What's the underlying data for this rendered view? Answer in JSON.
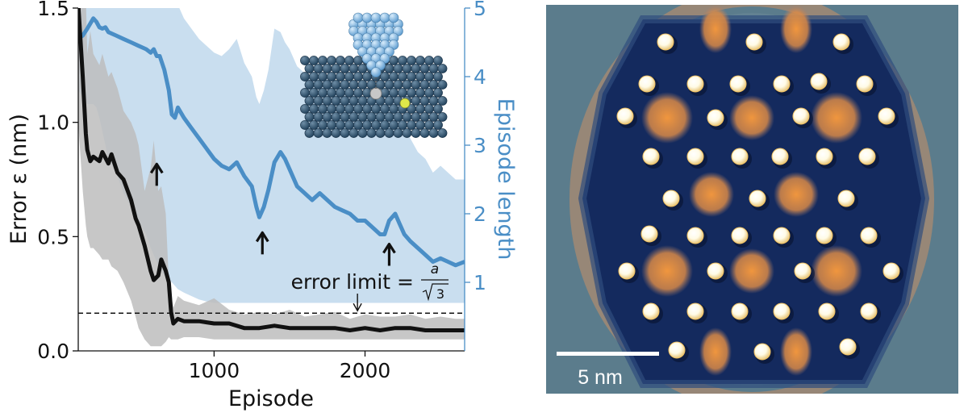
{
  "chart_data": {
    "type": "line",
    "x_axis": {
      "label": "Episode",
      "range": [
        100,
        2660
      ],
      "ticks": [
        1000,
        2000
      ],
      "tick_labels": [
        "1000",
        "2000"
      ]
    },
    "y_left": {
      "label": "Error ε (nm)",
      "range": [
        0.0,
        1.5
      ],
      "ticks": [
        0.0,
        0.5,
        1.0,
        1.5
      ],
      "tick_labels": [
        "0.0",
        "0.5",
        "1.0",
        "1.5"
      ]
    },
    "y_right": {
      "label": "Episode length",
      "range": [
        0,
        5
      ],
      "ticks": [
        1,
        2,
        3,
        4,
        5
      ],
      "tick_labels": [
        "1",
        "2",
        "3",
        "4",
        "5"
      ],
      "color": "#4a8ec6"
    },
    "series": [
      {
        "axis": "left",
        "color": "#111111",
        "band_color": "#bdbdbd",
        "x": [
          100,
          130,
          150,
          160,
          180,
          200,
          240,
          260,
          300,
          320,
          360,
          400,
          450,
          480,
          500,
          540,
          580,
          600,
          630,
          650,
          680,
          700,
          715,
          730,
          760,
          800,
          900,
          1000,
          1100,
          1200,
          1300,
          1400,
          1500,
          1600,
          1700,
          1800,
          1900,
          2000,
          2100,
          2200,
          2300,
          2400,
          2500,
          2600,
          2660
        ],
        "y": [
          1.52,
          1.2,
          0.95,
          0.88,
          0.83,
          0.85,
          0.83,
          0.87,
          0.82,
          0.86,
          0.78,
          0.75,
          0.66,
          0.58,
          0.55,
          0.46,
          0.35,
          0.31,
          0.33,
          0.4,
          0.35,
          0.3,
          0.17,
          0.12,
          0.14,
          0.13,
          0.13,
          0.12,
          0.12,
          0.1,
          0.1,
          0.11,
          0.1,
          0.1,
          0.1,
          0.1,
          0.09,
          0.1,
          0.09,
          0.1,
          0.1,
          0.09,
          0.09,
          0.09,
          0.09
        ],
        "upper": [
          1.6,
          1.6,
          1.55,
          1.3,
          1.4,
          1.3,
          1.25,
          1.3,
          1.2,
          1.22,
          1.15,
          1.05,
          1.0,
          0.95,
          0.9,
          0.7,
          0.8,
          0.92,
          0.7,
          0.72,
          0.6,
          0.3,
          0.24,
          0.19,
          0.24,
          0.22,
          0.2,
          0.23,
          0.18,
          0.16,
          0.17,
          0.16,
          0.18,
          0.15,
          0.16,
          0.17,
          0.14,
          0.16,
          0.15,
          0.15,
          0.16,
          0.14,
          0.15,
          0.14,
          0.14
        ],
        "lower": [
          1.0,
          0.7,
          0.55,
          0.5,
          0.45,
          0.45,
          0.42,
          0.4,
          0.4,
          0.37,
          0.35,
          0.3,
          0.22,
          0.15,
          0.1,
          0.05,
          0.02,
          0.02,
          0.02,
          0.02,
          0.04,
          0.06,
          0.05,
          0.05,
          0.05,
          0.06,
          0.06,
          0.05,
          0.05,
          0.05,
          0.05,
          0.05,
          0.05,
          0.05,
          0.05,
          0.05,
          0.05,
          0.05,
          0.05,
          0.05,
          0.05,
          0.05,
          0.05,
          0.05,
          0.05
        ]
      },
      {
        "axis": "right",
        "color": "#4a8ec6",
        "band_color": "#c6dcee",
        "x": [
          100,
          130,
          160,
          200,
          220,
          240,
          260,
          280,
          300,
          350,
          400,
          450,
          500,
          550,
          580,
          600,
          620,
          640,
          670,
          700,
          720,
          740,
          760,
          800,
          850,
          900,
          950,
          1000,
          1050,
          1100,
          1150,
          1200,
          1250,
          1280,
          1300,
          1330,
          1360,
          1400,
          1440,
          1470,
          1500,
          1550,
          1600,
          1650,
          1700,
          1750,
          1800,
          1850,
          1900,
          1950,
          2000,
          2050,
          2100,
          2130,
          2160,
          2200,
          2230,
          2260,
          2300,
          2350,
          2400,
          2450,
          2500,
          2550,
          2600,
          2660
        ],
        "y": [
          4.55,
          4.6,
          4.7,
          4.85,
          4.8,
          4.72,
          4.7,
          4.72,
          4.65,
          4.6,
          4.55,
          4.5,
          4.45,
          4.4,
          4.35,
          4.4,
          4.3,
          4.3,
          4.1,
          3.8,
          3.45,
          3.4,
          3.55,
          3.4,
          3.25,
          3.1,
          2.95,
          2.8,
          2.7,
          2.65,
          2.75,
          2.55,
          2.4,
          2.1,
          1.95,
          2.1,
          2.35,
          2.75,
          2.9,
          2.8,
          2.65,
          2.4,
          2.3,
          2.2,
          2.3,
          2.2,
          2.1,
          2.05,
          2.0,
          1.9,
          1.9,
          1.8,
          1.7,
          1.7,
          1.9,
          2.0,
          1.85,
          1.7,
          1.6,
          1.5,
          1.4,
          1.3,
          1.35,
          1.3,
          1.25,
          1.3
        ],
        "upper": [
          5.1,
          5.1,
          5.1,
          5.1,
          5.1,
          5.1,
          5.1,
          5.1,
          5.1,
          5.1,
          5.1,
          5.1,
          5.1,
          5.1,
          5.1,
          5.1,
          5.1,
          5.1,
          5.1,
          5.1,
          5.1,
          5.1,
          5.05,
          4.85,
          4.7,
          4.55,
          4.45,
          4.35,
          4.3,
          4.4,
          4.55,
          4.2,
          4.0,
          3.7,
          3.6,
          3.8,
          4.1,
          4.7,
          4.65,
          4.5,
          4.4,
          4.15,
          4.05,
          3.95,
          4.1,
          4.0,
          3.9,
          3.85,
          3.8,
          3.75,
          3.7,
          3.65,
          3.6,
          3.6,
          4.0,
          3.8,
          3.5,
          3.3,
          3.1,
          2.9,
          2.8,
          2.6,
          2.7,
          2.6,
          2.5,
          2.5
        ],
        "lower": [
          3.8,
          3.7,
          3.6,
          3.6,
          3.55,
          3.4,
          3.2,
          3.0,
          2.8,
          2.6,
          2.3,
          2.1,
          1.9,
          1.7,
          1.5,
          1.4,
          1.3,
          1.2,
          1.1,
          1.05,
          1.0,
          0.95,
          0.9,
          0.85,
          0.8,
          0.75,
          0.72,
          0.7,
          0.7,
          0.7,
          0.7,
          0.7,
          0.7,
          0.7,
          0.7,
          0.7,
          0.7,
          0.7,
          0.7,
          0.7,
          0.7,
          0.7,
          0.7,
          0.7,
          0.7,
          0.7,
          0.7,
          0.7,
          0.7,
          0.7,
          0.7,
          0.7,
          0.7,
          0.7,
          0.7,
          0.7,
          0.7,
          0.7,
          0.7,
          0.7,
          0.7,
          0.7,
          0.7,
          0.7,
          0.7,
          0.7
        ]
      }
    ],
    "reference_line": {
      "axis": "left",
      "y": 0.165,
      "style": "dashed",
      "label_text": "error limit =",
      "fraction_numerator": "a",
      "fraction_denominator": "3",
      "label_x": 1850,
      "arrow_x": 1950
    },
    "markers": [
      {
        "type": "up-arrow",
        "x": 620,
        "y_left": 0.8
      },
      {
        "type": "up-arrow",
        "x": 1320,
        "y_left": 0.5
      },
      {
        "type": "up-arrow",
        "x": 2160,
        "y_left": 0.45
      }
    ],
    "grid": false,
    "legend": "none"
  },
  "scale_bar": {
    "label": "5 nm"
  },
  "colors": {
    "axis": "#111111",
    "right_axis": "#4a8ec6",
    "stm_background": "#5b7c8c",
    "stm_dark": "#142a5e",
    "stm_orange": "#e08a3a",
    "stm_atom": "#ffffff",
    "tip_atom": "#8fc3ec",
    "surface_atom": "#2e5673",
    "target_atom": "#dfe84a"
  }
}
